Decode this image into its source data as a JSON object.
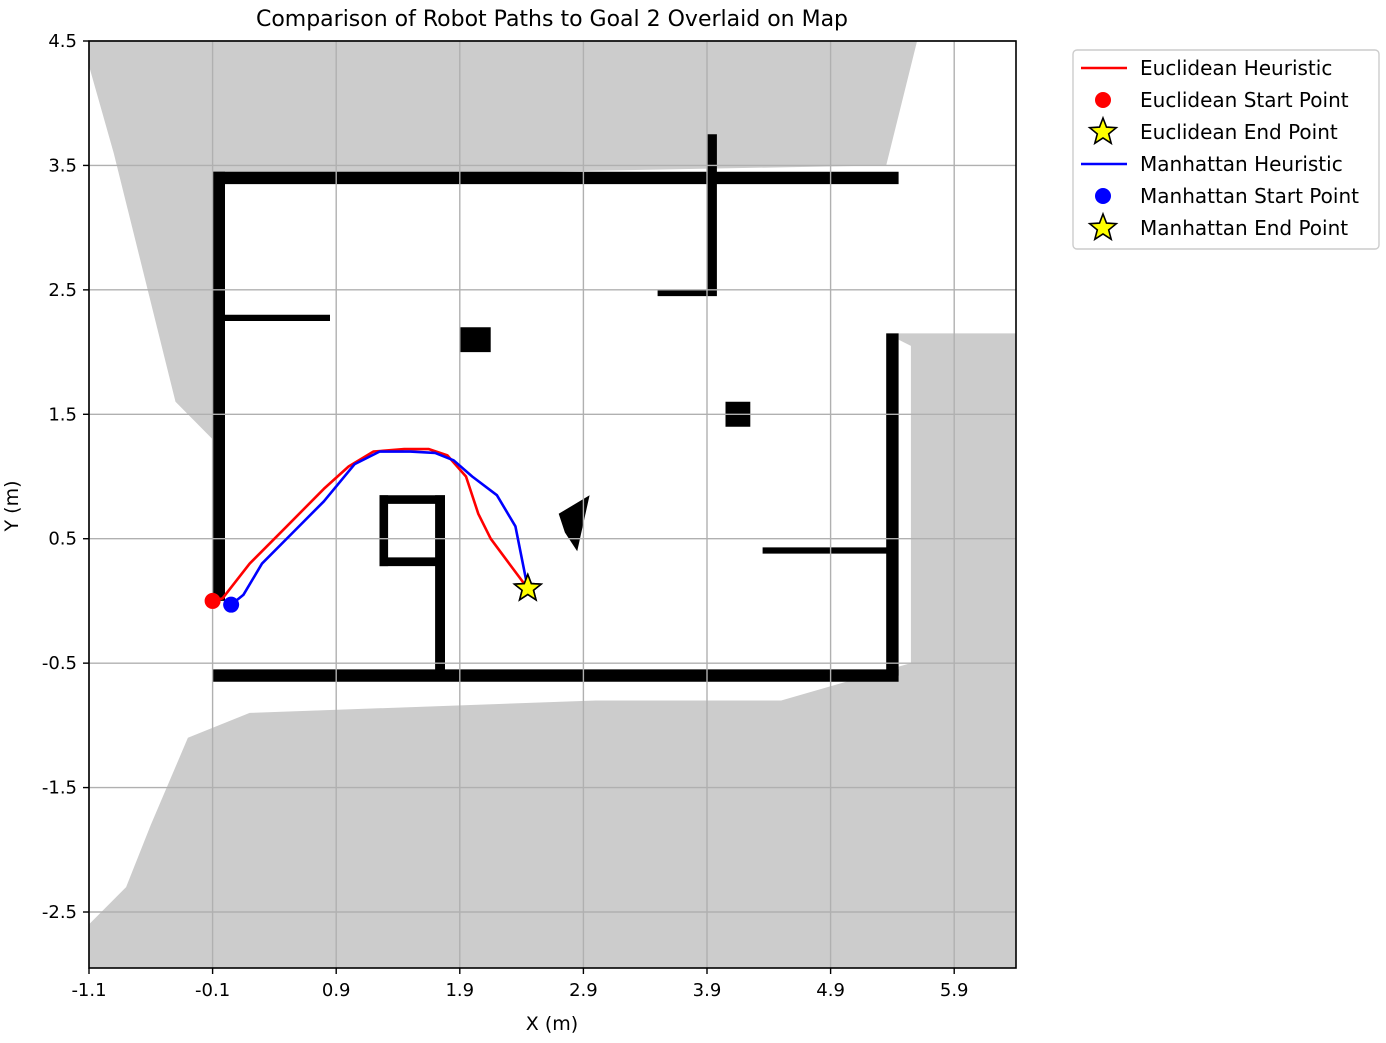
{
  "chart_data": {
    "type": "line",
    "title": "Comparison of Robot Paths to Goal 2 Overlaid on Map",
    "xlabel": "X (m)",
    "ylabel": "Y (m)",
    "xlim": [
      -1.1,
      6.4
    ],
    "ylim": [
      -2.95,
      4.5
    ],
    "xticks": [
      -1.1,
      -0.1,
      0.9,
      1.9,
      2.9,
      3.9,
      4.9,
      5.9
    ],
    "xtick_labels": [
      "-1.1",
      "-0.1",
      "0.9",
      "1.9",
      "2.9",
      "3.9",
      "4.9",
      "5.9"
    ],
    "yticks": [
      4.5,
      3.5,
      2.5,
      1.5,
      0.5,
      -0.5,
      -1.5,
      -2.5
    ],
    "ytick_labels": [
      "4.5",
      "3.5",
      "2.5",
      "1.5",
      "0.5",
      "-0.5",
      "-1.5",
      "-2.5"
    ],
    "grid": true,
    "legend_position": "outside-right-top",
    "series": [
      {
        "name": "Euclidean Heuristic",
        "color": "#ff0000",
        "x": [
          -0.1,
          -0.02,
          0.2,
          0.5,
          0.8,
          1.0,
          1.2,
          1.45,
          1.65,
          1.8,
          1.95,
          2.05,
          2.15,
          2.3,
          2.45
        ],
        "y": [
          0.0,
          0.02,
          0.3,
          0.6,
          0.9,
          1.08,
          1.2,
          1.22,
          1.22,
          1.17,
          1.0,
          0.7,
          0.5,
          0.3,
          0.1
        ]
      },
      {
        "name": "Euclidean Start Point",
        "color": "#ff0000",
        "x": [
          -0.1
        ],
        "y": [
          0.0
        ]
      },
      {
        "name": "Euclidean End Point",
        "color": "#ffff00",
        "x": [
          2.45
        ],
        "y": [
          0.1
        ]
      },
      {
        "name": "Manhattan Heuristic",
        "color": "#0000ff",
        "x": [
          0.05,
          0.15,
          0.3,
          0.55,
          0.8,
          1.05,
          1.25,
          1.5,
          1.7,
          1.85,
          2.0,
          2.2,
          2.35,
          2.45
        ],
        "y": [
          -0.03,
          0.05,
          0.3,
          0.55,
          0.8,
          1.1,
          1.2,
          1.2,
          1.19,
          1.13,
          1.0,
          0.85,
          0.6,
          0.1
        ]
      },
      {
        "name": "Manhattan Start Point",
        "color": "#0000ff",
        "x": [
          0.05
        ],
        "y": [
          -0.03
        ]
      },
      {
        "name": "Manhattan End Point",
        "color": "#ffff00",
        "x": [
          2.45
        ],
        "y": [
          0.1
        ]
      }
    ],
    "map": {
      "unknown_color": "#cccccc",
      "free_color": "#ffffff",
      "obstacle_color": "#000000",
      "unknown_regions": [
        [
          [
            -1.1,
            4.5
          ],
          [
            5.6,
            4.5
          ],
          [
            5.35,
            3.5
          ],
          [
            -0.1,
            3.4
          ],
          [
            -0.1,
            1.3
          ],
          [
            -0.4,
            1.6
          ],
          [
            -0.9,
            3.6
          ],
          [
            -1.1,
            4.3
          ]
        ],
        [
          [
            5.35,
            2.15
          ],
          [
            6.4,
            2.15
          ],
          [
            6.4,
            -2.95
          ],
          [
            -1.1,
            -2.95
          ],
          [
            -1.1,
            -2.6
          ],
          [
            -0.8,
            -2.3
          ],
          [
            -0.6,
            -1.8
          ],
          [
            -0.3,
            -1.1
          ],
          [
            0.2,
            -0.9
          ],
          [
            3.0,
            -0.8
          ],
          [
            4.5,
            -0.8
          ],
          [
            5.55,
            -0.5
          ],
          [
            5.55,
            2.05
          ]
        ]
      ],
      "obstacles": [
        [
          [
            -0.1,
            3.35
          ],
          [
            5.45,
            3.35
          ],
          [
            5.45,
            3.45
          ],
          [
            -0.1,
            3.45
          ]
        ],
        [
          [
            -0.1,
            0.0
          ],
          [
            0.0,
            0.0
          ],
          [
            0.0,
            3.45
          ],
          [
            -0.1,
            3.45
          ]
        ],
        [
          [
            0.0,
            2.25
          ],
          [
            0.85,
            2.25
          ],
          [
            0.85,
            2.3
          ],
          [
            0.0,
            2.3
          ]
        ],
        [
          [
            -0.1,
            -0.65
          ],
          [
            5.45,
            -0.65
          ],
          [
            5.45,
            -0.55
          ],
          [
            -0.1,
            -0.55
          ]
        ],
        [
          [
            1.7,
            -0.6
          ],
          [
            1.78,
            -0.6
          ],
          [
            1.78,
            0.85
          ],
          [
            1.7,
            0.85
          ]
        ],
        [
          [
            1.25,
            0.78
          ],
          [
            1.78,
            0.78
          ],
          [
            1.78,
            0.85
          ],
          [
            1.25,
            0.85
          ]
        ],
        [
          [
            1.25,
            0.28
          ],
          [
            1.32,
            0.28
          ],
          [
            1.32,
            0.85
          ],
          [
            1.25,
            0.85
          ]
        ],
        [
          [
            1.25,
            0.28
          ],
          [
            1.78,
            0.28
          ],
          [
            1.78,
            0.35
          ],
          [
            1.25,
            0.35
          ]
        ],
        [
          [
            3.9,
            2.5
          ],
          [
            3.98,
            2.5
          ],
          [
            3.98,
            3.75
          ],
          [
            3.9,
            3.75
          ]
        ],
        [
          [
            3.5,
            2.45
          ],
          [
            3.98,
            2.45
          ],
          [
            3.98,
            2.5
          ],
          [
            3.5,
            2.5
          ]
        ],
        [
          [
            5.35,
            -0.6
          ],
          [
            5.45,
            -0.6
          ],
          [
            5.45,
            2.15
          ],
          [
            5.35,
            2.15
          ]
        ],
        [
          [
            4.35,
            0.38
          ],
          [
            5.4,
            0.38
          ],
          [
            5.4,
            0.43
          ],
          [
            4.35,
            0.43
          ]
        ],
        [
          [
            1.9,
            2.0
          ],
          [
            2.15,
            2.0
          ],
          [
            2.15,
            2.2
          ],
          [
            1.9,
            2.2
          ]
        ],
        [
          [
            4.05,
            1.4
          ],
          [
            4.25,
            1.4
          ],
          [
            4.25,
            1.6
          ],
          [
            4.05,
            1.6
          ]
        ],
        [
          [
            2.7,
            0.7
          ],
          [
            2.95,
            0.85
          ],
          [
            2.85,
            0.4
          ],
          [
            2.75,
            0.55
          ]
        ]
      ]
    }
  }
}
